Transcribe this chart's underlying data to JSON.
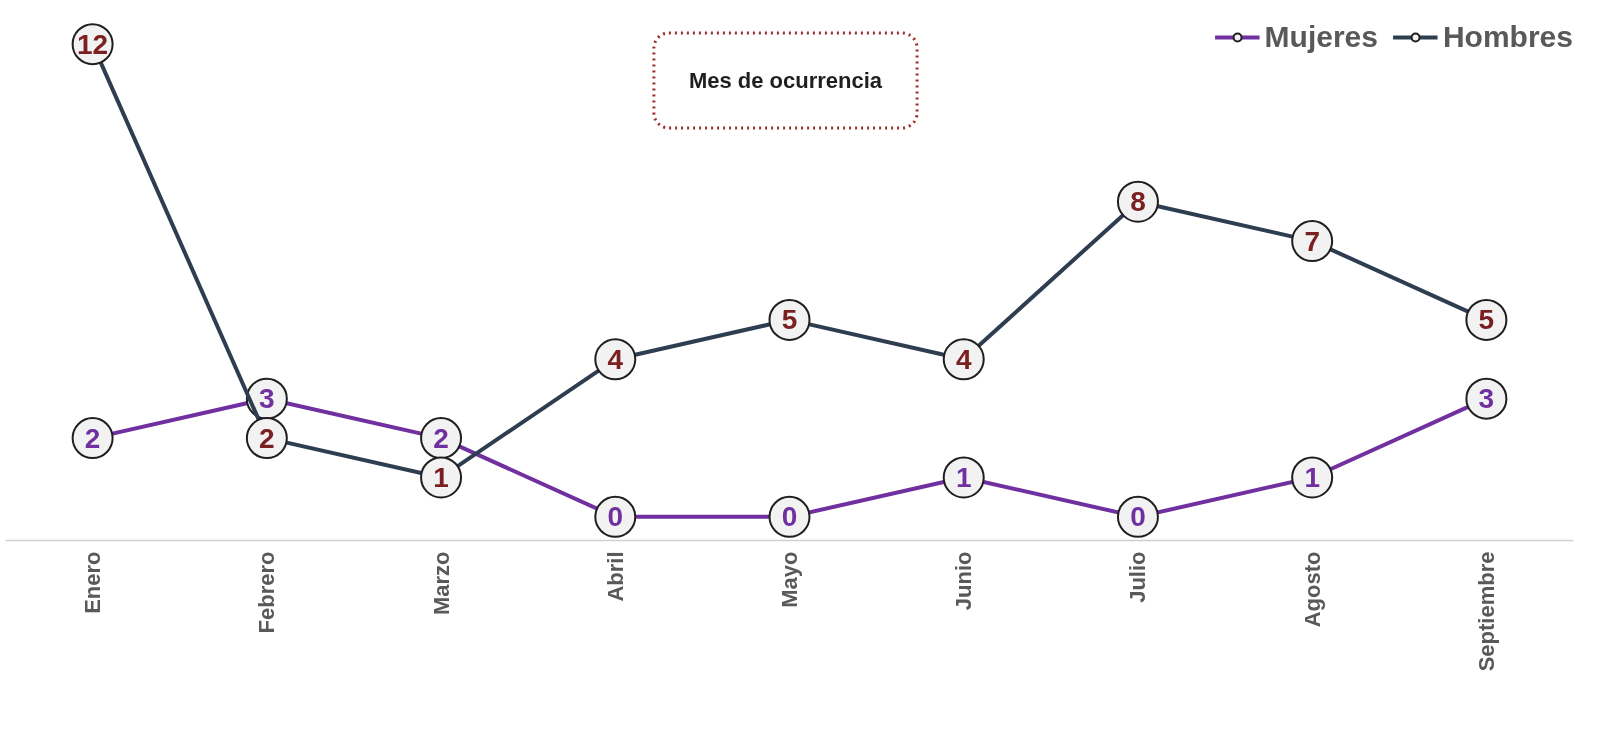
{
  "chart_data": {
    "type": "line",
    "title": "Mes de ocurrencia",
    "categories": [
      "Enero",
      "Febrero",
      "Marzo",
      "Abril",
      "Mayo",
      "Junio",
      "Julio",
      "Agosto",
      "Septiembre"
    ],
    "series": [
      {
        "name": "Mujeres",
        "color": "#7030a0",
        "values": [
          2,
          3,
          2,
          0,
          0,
          1,
          0,
          1,
          3
        ]
      },
      {
        "name": "Hombres",
        "color": "#2e3e50",
        "values": [
          12,
          2,
          1,
          4,
          5,
          4,
          8,
          7,
          5
        ]
      }
    ],
    "data_labels": true,
    "marker": "circle",
    "legend": "top right",
    "grid": false,
    "tick_labels": "x"
  }
}
